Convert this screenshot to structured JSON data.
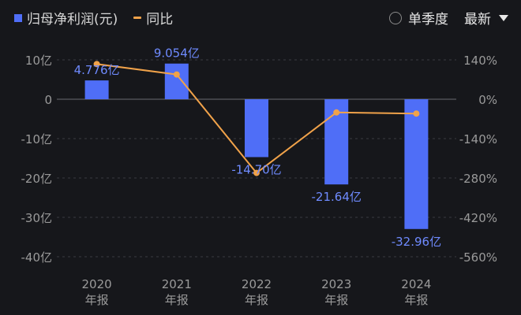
{
  "legend": {
    "bar_label": "归母净利润(元)",
    "line_label": "同比"
  },
  "controls": {
    "quarter_label": "单季度",
    "sort_label": "最新"
  },
  "colors": {
    "bar": "#4f6ef7",
    "line": "#f0a24a",
    "label": "#6f8bff",
    "axis_text": "#9a9a9a",
    "grid": "#3a3b40",
    "zero": "#6a6b70"
  },
  "chart_data": {
    "type": "bar",
    "categories": [
      "2020\n年报",
      "2021\n年报",
      "2022\n年报",
      "2023\n年报",
      "2024\n年报"
    ],
    "series": [
      {
        "name": "归母净利润(元)",
        "type": "bar",
        "axis": "left",
        "unit": "亿",
        "values": [
          4.776,
          9.054,
          -14.7,
          -21.64,
          -32.96
        ],
        "labels": [
          "4.776亿",
          "9.054亿",
          "-14.70亿",
          "-21.64亿",
          "-32.96亿"
        ]
      },
      {
        "name": "同比",
        "type": "line",
        "axis": "right",
        "unit": "%",
        "values": [
          125,
          88,
          -262,
          -47,
          -51
        ]
      }
    ],
    "left_axis": {
      "ylim": [
        -40,
        10
      ],
      "ticks": [
        10,
        0,
        -10,
        -20,
        -30,
        -40
      ],
      "tick_labels": [
        "10亿",
        "0",
        "-10亿",
        "-20亿",
        "-30亿",
        "-40亿"
      ]
    },
    "right_axis": {
      "ylim": [
        -560,
        140
      ],
      "ticks": [
        140,
        0,
        -140,
        -280,
        -420,
        -560
      ],
      "tick_labels": [
        "140%",
        "0%",
        "-140%",
        "-280%",
        "-420%",
        "-560%"
      ]
    },
    "grid": true
  }
}
